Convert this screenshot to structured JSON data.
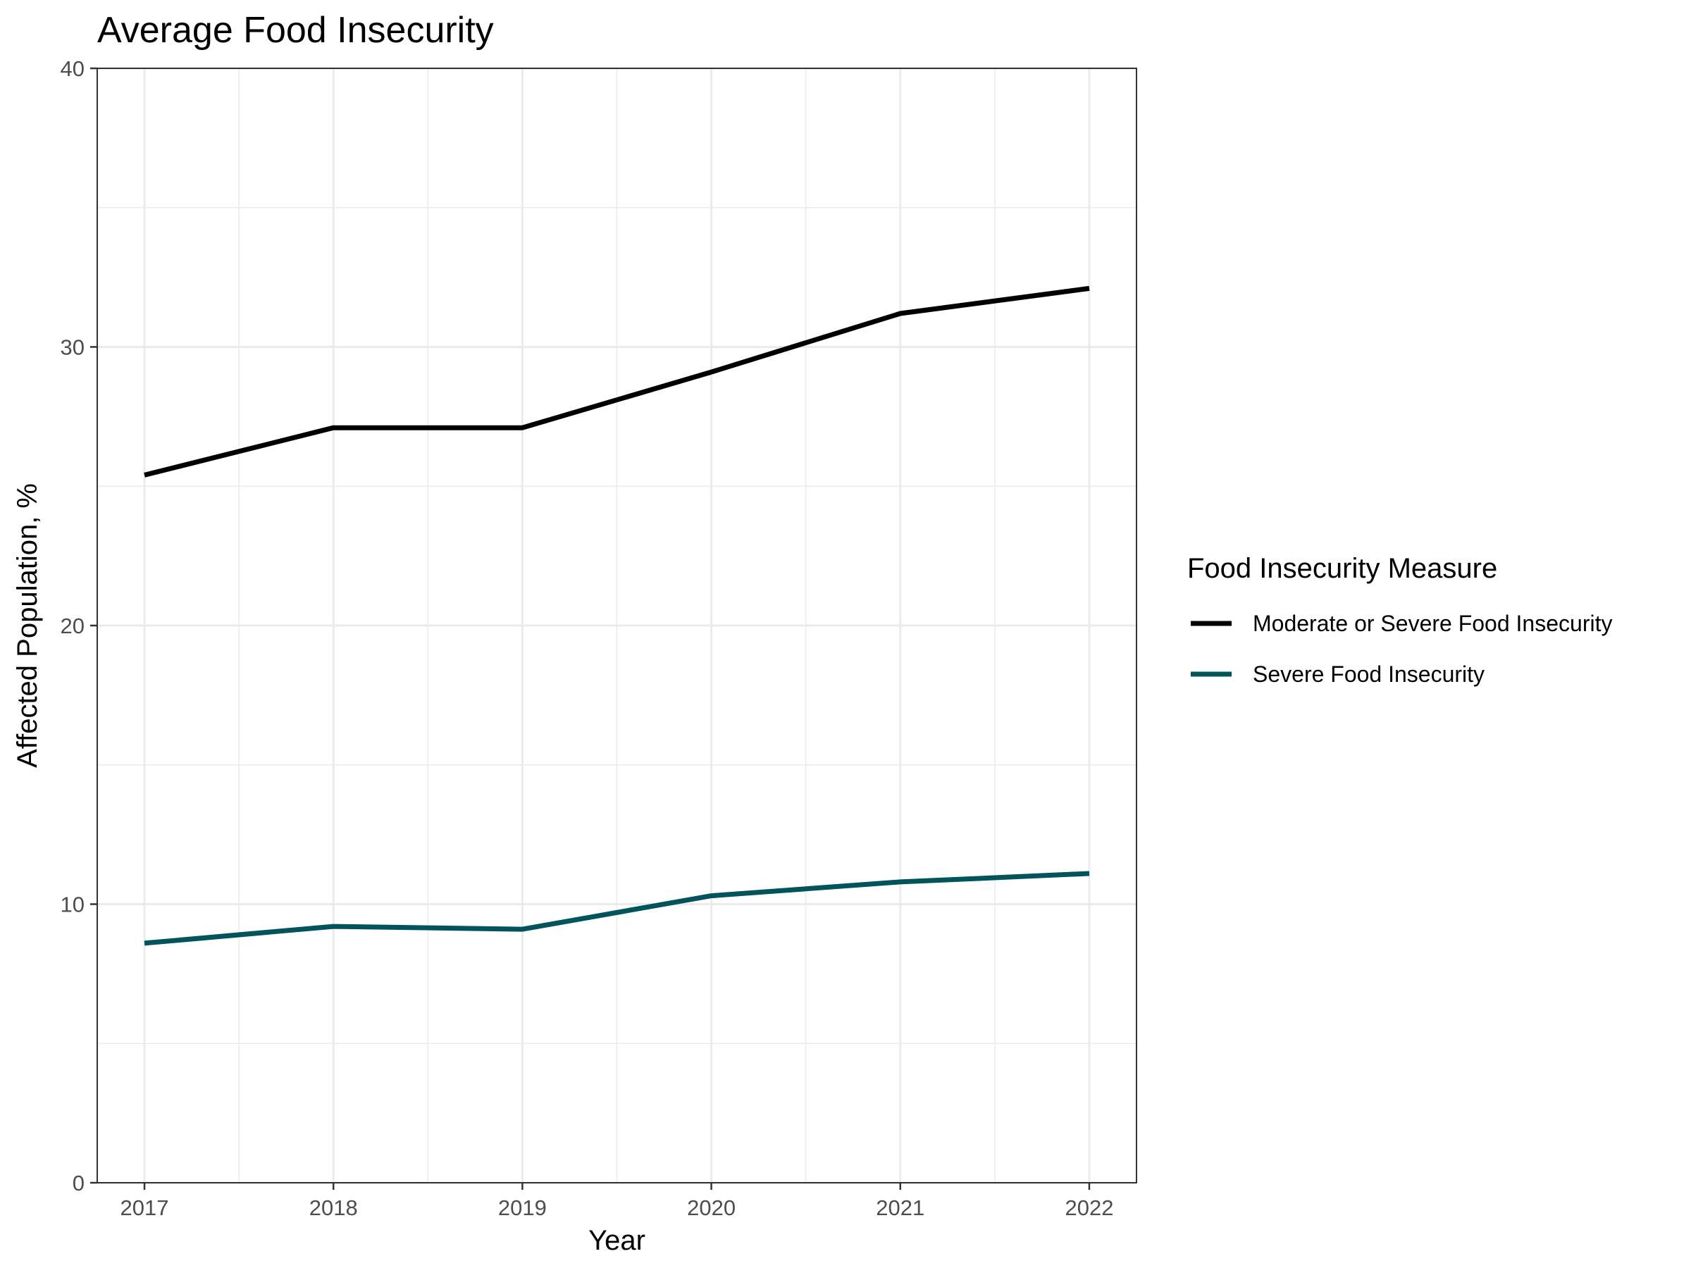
{
  "chart_data": {
    "type": "line",
    "title": "Average Food Insecurity",
    "xlabel": "Year",
    "ylabel": "Affected Population, %",
    "x": [
      2017,
      2018,
      2019,
      2020,
      2021,
      2022
    ],
    "xticks": [
      "2017",
      "2018",
      "2019",
      "2020",
      "2021",
      "2022"
    ],
    "yticks": [
      "0",
      "10",
      "20",
      "30",
      "40"
    ],
    "ylim": [
      0,
      40
    ],
    "grid": true,
    "legend": {
      "title": "Food Insecurity Measure",
      "position": "right"
    },
    "series": [
      {
        "name": "Moderate or Severe Food Insecurity",
        "color": "#000000",
        "values": [
          25.4,
          27.1,
          27.1,
          29.1,
          31.2,
          32.1
        ]
      },
      {
        "name": "Severe Food Insecurity",
        "color": "#00545a",
        "values": [
          8.6,
          9.2,
          9.1,
          10.3,
          10.8,
          11.1
        ]
      }
    ]
  }
}
